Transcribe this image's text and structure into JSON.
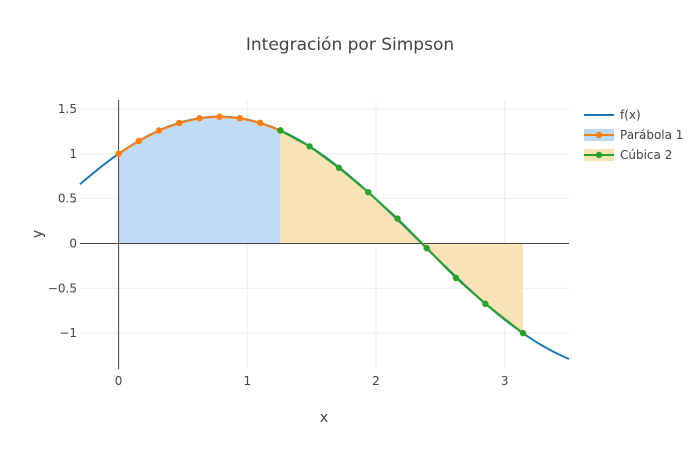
{
  "chart_data": {
    "type": "line",
    "title": "Integración por Simpson",
    "xlabel": "x",
    "ylabel": "y",
    "xlim": [
      -0.3,
      3.5
    ],
    "ylim": [
      -1.4,
      1.6
    ],
    "x_ticks": [
      0,
      1,
      2,
      3
    ],
    "x_tick_labels": [
      "0",
      "1",
      "2",
      "3"
    ],
    "y_ticks": [
      1.5,
      1,
      0.5,
      0,
      -0.5,
      -1
    ],
    "y_tick_labels": [
      "1.5",
      "1",
      "0.5",
      "0",
      "−0.5",
      "−1"
    ],
    "grid": true,
    "legend_position": "top-right",
    "series": [
      {
        "name": "f(x)",
        "color": "#1f77b4",
        "mode": "lines",
        "function": "sin(x)+cos(x)",
        "x_range": [
          -0.3,
          3.5
        ]
      },
      {
        "name": "Parábola 1",
        "color": "#ff7f0e",
        "fill_color": "#bcd9f5",
        "mode": "lines+markers",
        "x": [
          0,
          0.157,
          0.314,
          0.471,
          0.628,
          0.785,
          0.942,
          1.1,
          1.257
        ],
        "y": [
          1.0,
          1.144,
          1.26,
          1.344,
          1.397,
          1.414,
          1.397,
          1.345,
          1.26
        ]
      },
      {
        "name": "Cúbica 2",
        "color": "#2ca02c",
        "fill_color": "#f7e2b2",
        "mode": "lines+markers",
        "x": [
          1.257,
          1.484,
          1.712,
          1.94,
          2.168,
          2.394,
          2.622,
          2.85,
          3.142
        ],
        "y": [
          1.26,
          1.083,
          0.844,
          0.572,
          0.277,
          -0.052,
          -0.385,
          -0.673,
          -1.0
        ]
      }
    ]
  }
}
